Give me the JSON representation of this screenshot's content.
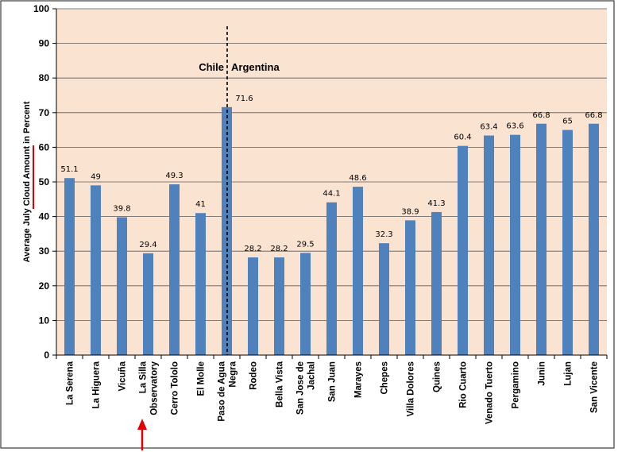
{
  "chart_data": {
    "type": "bar",
    "ylabel": "Average July Cloud Amount in Percent",
    "ylim": [
      0,
      100
    ],
    "yticks": [
      0,
      10,
      20,
      30,
      40,
      50,
      60,
      70,
      80,
      90,
      100
    ],
    "grid": true,
    "bar_color": "#4f81bd",
    "plot_background": "#fbe3d1",
    "categories": [
      [
        "La Serena"
      ],
      [
        "La Higuera"
      ],
      [
        "Vicuña"
      ],
      [
        "La Silla",
        "Observatory"
      ],
      [
        "Cerro Tololo"
      ],
      [
        "El Molle"
      ],
      [
        "Paso de Agua",
        "Negra"
      ],
      [
        "Rodeo"
      ],
      [
        "Bella Vista"
      ],
      [
        "San Jose de",
        "Jachal"
      ],
      [
        "San Juan"
      ],
      [
        "Marayes"
      ],
      [
        "Chepes"
      ],
      [
        "Villa Dolores"
      ],
      [
        "Quines"
      ],
      [
        "Rio Cuarto"
      ],
      [
        "Venado Tuerto"
      ],
      [
        "Pergamino"
      ],
      [
        "Junin"
      ],
      [
        "Lujan"
      ],
      [
        "San Vicente"
      ]
    ],
    "values": [
      51.1,
      49,
      39.8,
      29.4,
      49.3,
      41,
      71.6,
      28.2,
      28.2,
      29.5,
      44.1,
      48.6,
      32.3,
      38.9,
      41.3,
      60.4,
      63.4,
      63.6,
      66.8,
      65,
      66.8
    ],
    "value_labels": [
      "51.1",
      "49",
      "39.8",
      "29.4",
      "49.3",
      "41",
      "71.6",
      "28.2",
      "28.2",
      "29.5",
      "44.1",
      "48.6",
      "32.3",
      "38.9",
      "41.3",
      "60.4",
      "63.4",
      "63.6",
      "66.8",
      "65",
      "66.8"
    ],
    "annotations": {
      "left_region": "Chile",
      "right_region": "Argentina",
      "highlight_category": "La Silla Observatory",
      "highlight_color": "#e00000"
    }
  }
}
